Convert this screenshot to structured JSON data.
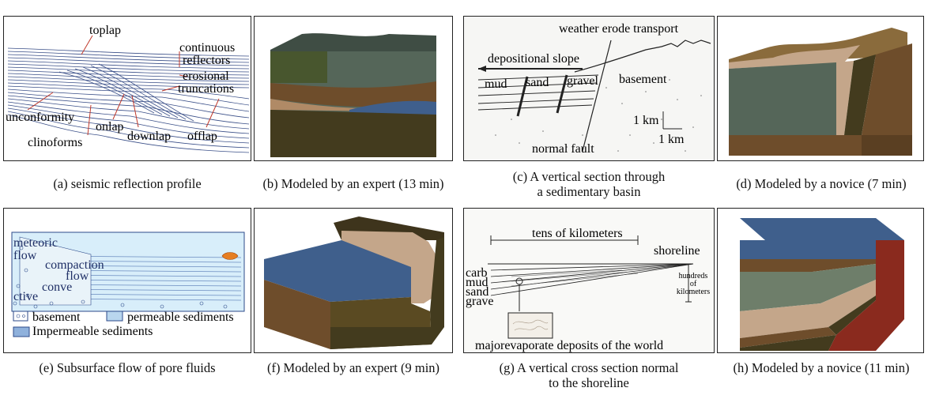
{
  "panel_a": {
    "labels": {
      "toplap": "toplap",
      "continuous": "continuous",
      "reflectors": "reflectors",
      "erosional": "erosional",
      "truncations": "truncations",
      "unconformity": "unconformity",
      "onlap": "onlap",
      "clinoforms": "clinoforms",
      "downlap": "downlap",
      "offlap": "offlap"
    },
    "caption": "(a) seismic reflection profile"
  },
  "panel_b": {
    "caption": "(b) Modeled by an expert (13 min)"
  },
  "panel_c": {
    "labels": {
      "weather_erode_transport": "weather erode transport",
      "depositional_slope": "depositional slope",
      "mud": "mud",
      "sand": "sand",
      "gravel": "gravel",
      "basement": "basement",
      "scale_vertical": "1 km",
      "scale_horizontal": "1 km",
      "normal_fault": "normal fault"
    },
    "caption_line1": "(c) A vertical section through",
    "caption_line2": "a sedimentary basin"
  },
  "panel_d": {
    "caption": "(d) Modeled by a novice (7 min)"
  },
  "panel_e": {
    "labels": {
      "meteoric": "meteoric",
      "flow_1": "flow",
      "compaction": "compaction",
      "flow_2": "flow",
      "conve": "conve",
      "ctive": "ctive",
      "basement": "basement",
      "permeable_sediments": "permeable sediments",
      "impermeable_sediments": "Impermeable sediments"
    },
    "caption": "(e) Subsurface flow of pore fluids"
  },
  "panel_f": {
    "caption": "(f) Modeled by an expert (9 min)"
  },
  "panel_g": {
    "labels": {
      "tens_of_kilometers": "tens of kilometers",
      "shoreline": "shoreline",
      "carb": "carb",
      "mud": "mud",
      "sand": "sand",
      "grave": "grave",
      "hundreds": "hundreds",
      "of": "of",
      "kilometers": "kilometers",
      "major_evaporate": "majorevaporate deposits of the world"
    },
    "caption_line1": "(g) A vertical cross section normal",
    "caption_line2": "to the shoreline"
  },
  "panel_h": {
    "caption": "(h) Modeled by a novice (11 min)"
  },
  "colors": {
    "frame": "#222222",
    "water_blue": "#3f5f8c",
    "slate_gray": "#556659",
    "olive_dark": "#433b1e",
    "brown": "#6e4d2b",
    "tan": "#c4a68a",
    "sage": "#6e7e6a",
    "red_brown": "#8a2a1e",
    "fluid_bg": "#d8eefa"
  }
}
